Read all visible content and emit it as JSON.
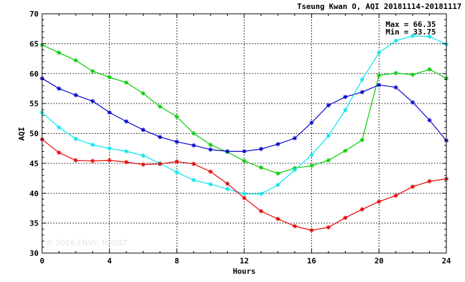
{
  "chart_data": {
    "type": "line",
    "title": "Tseung Kwan O, AQI 20181114-20181117",
    "xlabel": "Hours",
    "ylabel": "AQI",
    "xlim": [
      0,
      24
    ],
    "ylim": [
      30,
      70
    ],
    "xticks": [
      "0",
      "4",
      "8",
      "12",
      "16",
      "20",
      "24"
    ],
    "yticks": [
      "30",
      "35",
      "40",
      "45",
      "50",
      "55",
      "60",
      "65",
      "70"
    ],
    "grid": true,
    "annotations": {
      "max": "Max = 66.35",
      "min": "Min = 33.75"
    },
    "watermark": "© 2026 ENVF, HKUST",
    "x": [
      0,
      1,
      2,
      3,
      4,
      5,
      6,
      7,
      8,
      9,
      10,
      11,
      12,
      13,
      14,
      15,
      16,
      17,
      18,
      19,
      20,
      21,
      22,
      23,
      24
    ],
    "series": [
      {
        "color": "#00cc00",
        "values": [
          64.8,
          63.5,
          62.2,
          60.4,
          59.4,
          58.5,
          56.7,
          54.5,
          52.8,
          50.0,
          48.1,
          46.9,
          45.4,
          44.3,
          43.3,
          44.2,
          44.6,
          45.5,
          47.1,
          48.9,
          59.7,
          60.1,
          59.8,
          60.7,
          59.2
        ]
      },
      {
        "color": "#0000cc",
        "values": [
          59.2,
          57.5,
          56.4,
          55.4,
          53.5,
          52.0,
          50.6,
          49.4,
          48.6,
          48.0,
          47.3,
          47.0,
          47.0,
          47.4,
          48.2,
          49.2,
          51.8,
          54.7,
          56.1,
          56.9,
          58.1,
          57.7,
          55.2,
          52.2,
          48.8
        ]
      },
      {
        "color": "#00e5ee",
        "values": [
          53.5,
          51.0,
          49.1,
          48.1,
          47.5,
          47.0,
          46.3,
          45.0,
          43.5,
          42.2,
          41.5,
          40.7,
          39.9,
          39.9,
          41.4,
          43.9,
          46.4,
          49.6,
          53.9,
          59.0,
          63.5,
          65.5,
          66.3,
          66.2,
          64.9
        ]
      },
      {
        "color": "#e60000",
        "values": [
          49.0,
          46.8,
          45.5,
          45.4,
          45.5,
          45.2,
          44.8,
          44.9,
          45.3,
          44.9,
          43.6,
          41.6,
          39.2,
          37.0,
          35.7,
          34.5,
          33.8,
          34.3,
          35.9,
          37.3,
          38.6,
          39.6,
          41.1,
          42.0,
          42.4
        ]
      }
    ]
  }
}
